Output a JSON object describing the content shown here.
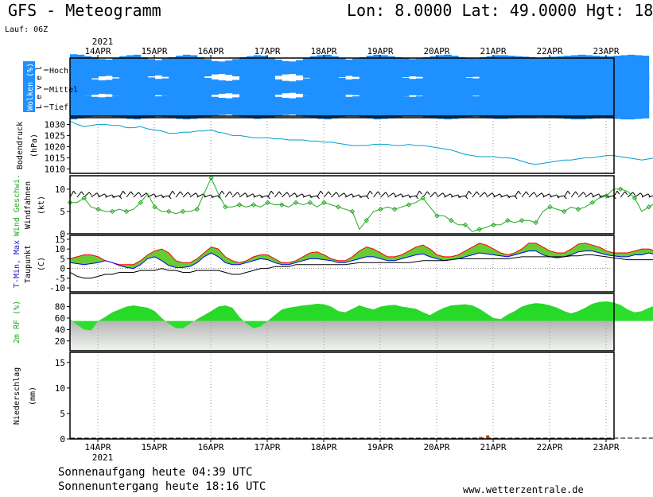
{
  "header": {
    "title": "GFS - Meteogramm",
    "coords": "Lon: 8.0000 Lat: 49.0000 Hgt: 18",
    "run": "Lauf: 06Z"
  },
  "footer": {
    "sunrise": "Sonnenaufgang heute 04:39 UTC",
    "sunset": "Sonnenuntergang heute 18:16 UTC",
    "site": "www.wetterzentrale.de"
  },
  "colors": {
    "cloud": "#1e90ff",
    "pressure": "#00a0d0",
    "wind": "#22aa22",
    "tmin": "#0000ff",
    "tmax": "#ff0000",
    "humidity": "#22dd22",
    "precip_rain": "#cc3300",
    "precip_snow": "#228822"
  },
  "chart_data": [
    {
      "type": "heatmap",
      "panel": "clouds",
      "ylabel": "Wolken (%)",
      "levels": [
        "Hoch",
        "Mittel",
        "Tief"
      ],
      "level_axis_label": "L e v e l",
      "x_start": "2021-04-13T12:00Z",
      "step_hours": 3,
      "hoch": [
        90,
        85,
        70,
        60,
        40,
        35,
        50,
        70,
        80,
        85,
        60,
        40,
        30,
        45,
        60,
        75,
        85,
        80,
        60,
        40,
        20,
        15,
        25,
        40,
        60,
        70,
        80,
        75,
        55,
        35,
        20,
        15,
        30,
        55,
        70,
        80,
        85,
        70,
        50,
        35,
        45,
        60,
        75,
        85,
        80,
        70,
        60,
        50,
        40,
        45,
        60,
        70,
        80,
        85,
        75,
        60,
        50,
        45,
        60,
        70,
        80,
        80,
        75,
        70,
        65,
        60,
        55,
        60,
        65,
        70,
        75,
        80,
        85,
        80,
        75,
        70,
        70,
        75,
        80,
        85,
        80,
        75
      ],
      "mittel": [
        80,
        60,
        40,
        30,
        20,
        25,
        40,
        55,
        70,
        80,
        70,
        50,
        35,
        40,
        55,
        70,
        80,
        75,
        60,
        45,
        30,
        20,
        15,
        25,
        45,
        60,
        75,
        70,
        50,
        30,
        15,
        10,
        20,
        40,
        60,
        75,
        80,
        65,
        45,
        30,
        35,
        50,
        65,
        80,
        75,
        65,
        55,
        45,
        35,
        40,
        55,
        65,
        75,
        80,
        70,
        55,
        45,
        40,
        55,
        65,
        75,
        75,
        70,
        65,
        60,
        55,
        50,
        55,
        60,
        65,
        70,
        75,
        80,
        75,
        70,
        65,
        65,
        70,
        75,
        80,
        75,
        70
      ],
      "tief": [
        85,
        75,
        60,
        50,
        45,
        50,
        60,
        70,
        80,
        85,
        75,
        65,
        55,
        60,
        70,
        80,
        85,
        80,
        70,
        60,
        50,
        40,
        35,
        45,
        60,
        70,
        80,
        75,
        65,
        50,
        40,
        35,
        45,
        60,
        70,
        80,
        85,
        75,
        60,
        50,
        55,
        65,
        75,
        85,
        80,
        75,
        65,
        55,
        50,
        55,
        65,
        75,
        80,
        85,
        80,
        70,
        60,
        55,
        65,
        75,
        80,
        80,
        75,
        70,
        70,
        65,
        60,
        65,
        70,
        75,
        80,
        85,
        85,
        80,
        75,
        70,
        75,
        80,
        85,
        85,
        80,
        75
      ]
    },
    {
      "type": "line",
      "panel": "pressure",
      "ylabel": "Bodendruck",
      "unit": "(hPa)",
      "ylim": [
        1008,
        1033
      ],
      "yticks": [
        1010,
        1015,
        1020,
        1025,
        1030
      ],
      "values": [
        1031.5,
        1030,
        1029,
        1029.5,
        1030,
        1030,
        1029.5,
        1029.5,
        1028.5,
        1028.5,
        1029,
        1028,
        1027.5,
        1027,
        1026,
        1026,
        1026.5,
        1026.5,
        1027,
        1027,
        1027.5,
        1026.5,
        1026,
        1025,
        1025,
        1024.5,
        1024,
        1024,
        1024,
        1023.5,
        1023.5,
        1023,
        1023,
        1023,
        1022.5,
        1022.5,
        1022,
        1022,
        1021.5,
        1021,
        1020.5,
        1020.5,
        1020.5,
        1021,
        1021,
        1021,
        1020.5,
        1020.5,
        1021,
        1020.5,
        1020.5,
        1020,
        1019.5,
        1019,
        1018.5,
        1017.5,
        1016.5,
        1016,
        1015.5,
        1015.5,
        1015.5,
        1015,
        1015,
        1014.5,
        1013.5,
        1012.5,
        1012,
        1012.5,
        1013,
        1013.5,
        1014,
        1014,
        1014.5,
        1015,
        1015,
        1015.5,
        1016,
        1016,
        1015.5,
        1015,
        1014.5,
        1014,
        1014.5,
        1015,
        1015.5,
        1016,
        1016.5,
        1016.5,
        1016,
        1015.5,
        1015,
        1014.5,
        1014,
        1014.5,
        1015,
        1015.5,
        1015,
        1014.5,
        1014.5,
        1014
      ]
    },
    {
      "type": "line",
      "panel": "wind",
      "ylabel": "Wind Geschwi.",
      "ylabel2": "Windfahnen",
      "unit": "(kt)",
      "ylim": [
        0,
        13
      ],
      "yticks": [
        0,
        5,
        10
      ],
      "values": [
        7,
        7,
        8,
        6,
        5.5,
        5,
        5,
        5.5,
        5,
        5.5,
        7,
        9,
        6,
        5,
        5,
        4.5,
        5,
        5,
        5.5,
        9,
        12.5,
        9,
        6,
        6,
        6.5,
        6,
        6.5,
        6,
        7,
        6.5,
        6.5,
        6,
        7,
        6.5,
        7,
        6,
        7,
        6.5,
        6,
        5.5,
        5,
        1,
        3,
        5,
        5.5,
        6,
        5.5,
        6,
        6.5,
        7,
        8,
        6,
        4,
        4,
        3,
        2,
        2,
        0.5,
        1,
        1.5,
        2,
        2,
        3,
        2.5,
        3,
        3,
        2.5,
        5,
        6,
        5.5,
        5,
        6,
        5.5,
        6,
        7,
        8,
        8.5,
        10,
        10,
        9.5,
        8,
        5,
        6,
        7,
        8,
        10.5,
        10.5,
        11.5,
        8.5,
        8,
        8,
        8,
        7.5,
        7.5,
        8,
        8.5,
        9,
        9
      ]
    },
    {
      "type": "area",
      "panel": "temperature",
      "ylabel": "T-Min, Max",
      "ylabel2": "Taupunkt",
      "unit": "(C)",
      "ylim": [
        -12,
        17
      ],
      "yticks": [
        -10,
        -5,
        0,
        5,
        10,
        15
      ],
      "tmin": [
        3,
        2.5,
        2,
        2.5,
        3,
        4,
        3,
        1.5,
        0.5,
        0,
        2,
        5,
        6,
        4,
        1.5,
        0.5,
        0.5,
        1,
        3,
        6,
        8,
        6,
        3,
        2,
        2,
        3,
        4,
        5,
        4.5,
        3,
        2,
        2,
        3,
        4,
        5,
        5,
        4.5,
        4,
        3,
        3,
        4,
        5,
        6,
        6,
        5,
        4,
        4,
        5,
        6,
        7,
        7.5,
        6,
        5,
        4,
        4.5,
        5,
        6,
        7,
        8,
        7.5,
        7,
        6.5,
        6,
        7,
        8,
        9,
        9,
        7,
        6,
        5.5,
        6,
        7,
        8.5,
        9,
        9,
        8,
        7,
        6.5,
        6,
        6,
        7,
        7,
        8,
        7,
        6.5,
        6,
        6,
        6,
        6
      ],
      "tmax": [
        5,
        6,
        7,
        7,
        6,
        4,
        3,
        2,
        2,
        2,
        4,
        7,
        9,
        10,
        8,
        4,
        3,
        3,
        5,
        8,
        11,
        10,
        6,
        4,
        3,
        4,
        6,
        7,
        7,
        5,
        3,
        3,
        4,
        6,
        8,
        8.5,
        7,
        5,
        4,
        4,
        6,
        9,
        11,
        10,
        8,
        6,
        6,
        7,
        9,
        11,
        12,
        10,
        7,
        6,
        6,
        7,
        9,
        11,
        13,
        12,
        10,
        8,
        7,
        8,
        10,
        13,
        13,
        11,
        9,
        8,
        8,
        10,
        12.5,
        13,
        12,
        11,
        9,
        8,
        8,
        8,
        9,
        10,
        10,
        9,
        8,
        7,
        7,
        7,
        7,
        7
      ],
      "dewpoint": [
        -2,
        -4,
        -5,
        -5,
        -4,
        -3,
        -3,
        -2,
        -2,
        -2,
        -1,
        -1,
        -1,
        0,
        -1,
        -1,
        -2,
        -2,
        -1,
        -1,
        -1,
        -1,
        -2,
        -3,
        -3,
        -2,
        -1,
        0,
        0,
        1,
        1,
        1,
        2,
        2,
        2,
        2,
        2,
        2,
        2,
        2,
        2.5,
        3,
        3,
        3,
        3,
        3,
        3,
        3,
        3,
        3.5,
        4,
        4,
        4,
        4,
        4.5,
        5,
        5,
        5,
        5,
        5,
        5,
        5,
        5,
        5.5,
        6,
        6,
        6,
        6,
        6,
        6,
        6,
        6.5,
        6.5,
        7,
        7,
        6.5,
        6,
        5.5,
        5,
        4.5,
        4.5,
        4.5,
        4.5,
        4.5,
        4.5,
        4.5,
        4.5,
        4.5,
        4.5,
        4.5,
        4.5,
        4.5
      ]
    },
    {
      "type": "area",
      "panel": "humidity",
      "ylabel": "2m RF (%)",
      "ylim": [
        3,
        103
      ],
      "yticks": [
        20,
        40,
        60,
        80
      ],
      "values": [
        58,
        48,
        40,
        38,
        55,
        62,
        70,
        75,
        80,
        82,
        80,
        78,
        72,
        60,
        50,
        42,
        42,
        50,
        58,
        65,
        72,
        80,
        82,
        78,
        62,
        50,
        42,
        45,
        55,
        65,
        75,
        78,
        80,
        82,
        83,
        85,
        84,
        80,
        72,
        70,
        76,
        82,
        78,
        75,
        80,
        82,
        83,
        80,
        78,
        76,
        70,
        65,
        72,
        78,
        82,
        83,
        84,
        82,
        76,
        68,
        60,
        58,
        66,
        72,
        80,
        84,
        86,
        85,
        82,
        78,
        72,
        68,
        72,
        78,
        85,
        88,
        89,
        87,
        83,
        75,
        70,
        72,
        78,
        82,
        84,
        86,
        85,
        82,
        78,
        75,
        78,
        82,
        84,
        85,
        84,
        83
      ]
    },
    {
      "type": "bar",
      "panel": "precipitation",
      "ylabel": "Niederschlag",
      "unit": "(mm)",
      "ylim": [
        0,
        17
      ],
      "yticks": [
        0,
        5,
        10,
        15
      ],
      "events": [
        {
          "x": "2021-04-17T12:00Z",
          "value": 0.3
        },
        {
          "x": "2021-04-20T18:00Z",
          "value": 0.4
        },
        {
          "x": "2021-04-20T21:00Z",
          "value": 0.7
        },
        {
          "x": "2021-04-21T06:00Z",
          "value": 0.2
        },
        {
          "x": "2021-04-21T12:00Z",
          "value": 0.2
        }
      ]
    }
  ],
  "xaxis": {
    "year": "2021",
    "days": [
      "14APR",
      "15APR",
      "16APR",
      "17APR",
      "18APR",
      "19APR",
      "20APR",
      "21APR",
      "22APR",
      "23APR"
    ]
  }
}
